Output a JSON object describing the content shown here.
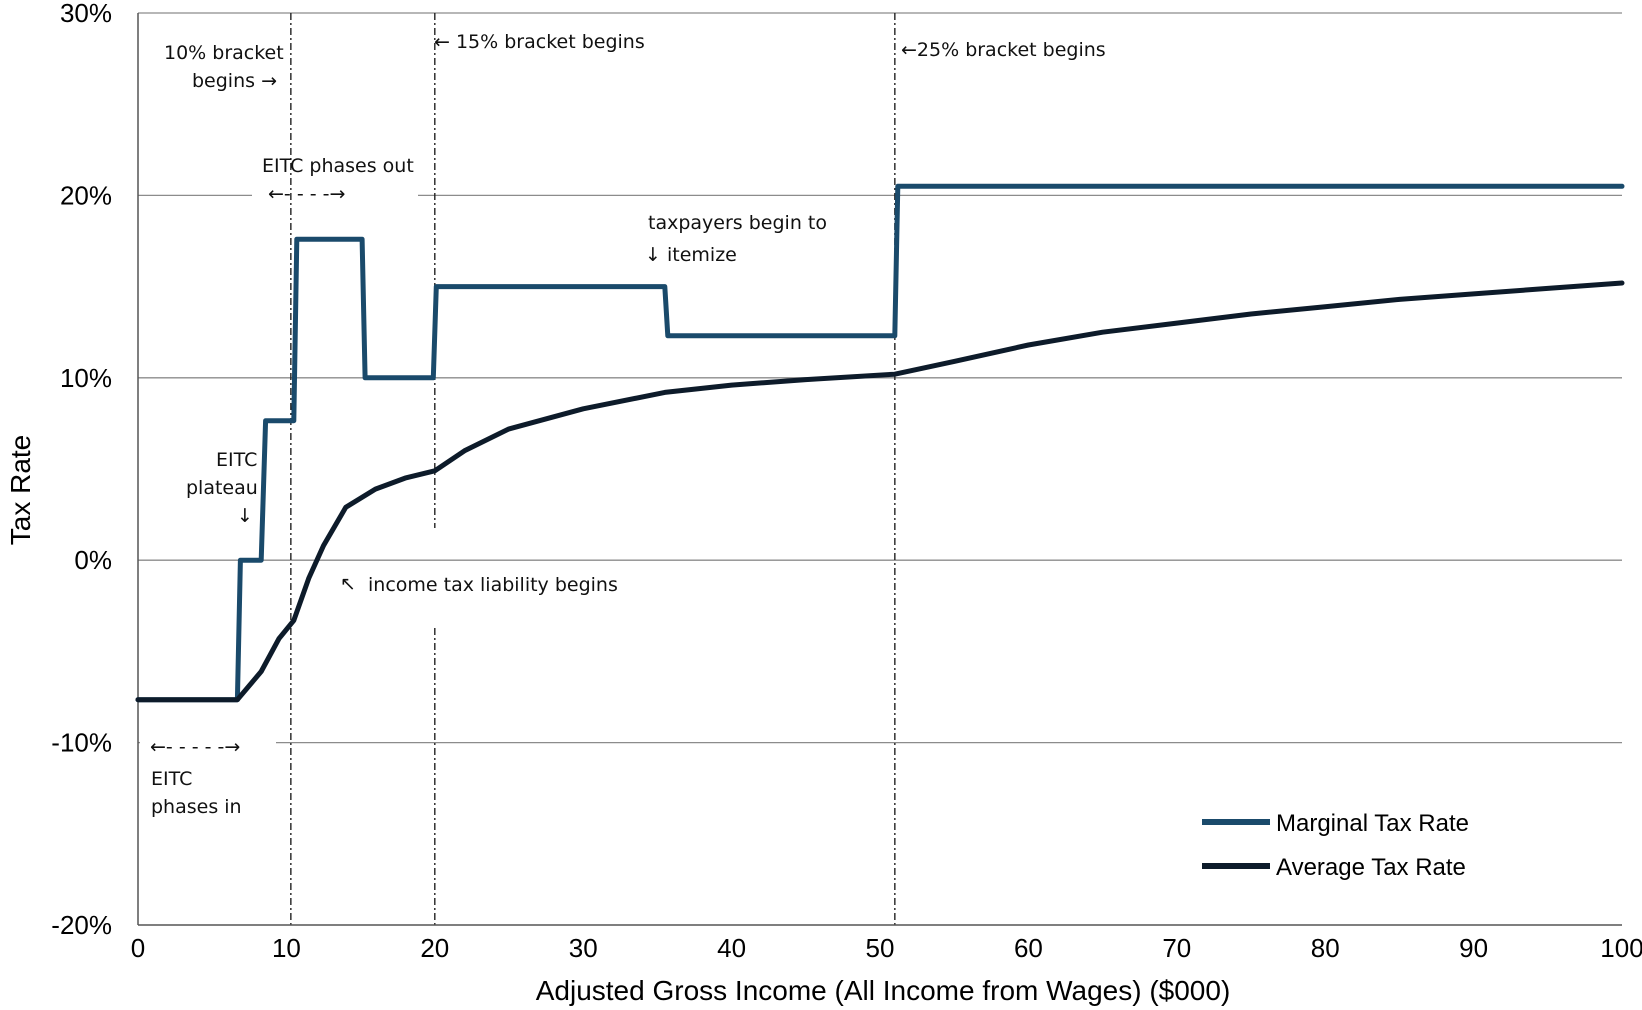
{
  "chart_data": {
    "type": "line",
    "title": "",
    "xlabel": "Adjusted Gross Income (All Income from Wages) ($000)",
    "ylabel": "Tax Rate",
    "xlim": [
      0,
      100
    ],
    "ylim": [
      -20,
      30
    ],
    "x_ticks": [
      0,
      10,
      20,
      30,
      40,
      50,
      60,
      70,
      80,
      90,
      100
    ],
    "x_tick_labels": [
      "0",
      "10",
      "20",
      "30",
      "40",
      "50",
      "60",
      "70",
      "80",
      "90",
      "100"
    ],
    "y_ticks": [
      -20,
      -10,
      0,
      10,
      20,
      30
    ],
    "y_tick_labels": [
      "-20%",
      "-10%",
      "0%",
      "10%",
      "20%",
      "30%"
    ],
    "grid": "horizontal",
    "legend_position": "bottom-right",
    "colors": {
      "marginal": "#1a4a6b",
      "average": "#0d1b2a",
      "grid": "#8c8c8c"
    },
    "series": [
      {
        "name": "Marginal Tax Rate",
        "points": [
          [
            0,
            -7.65
          ],
          [
            6.7,
            -7.65
          ],
          [
            6.9,
            0
          ],
          [
            8.3,
            0
          ],
          [
            8.6,
            7.65
          ],
          [
            10.5,
            7.65
          ],
          [
            10.7,
            17.6
          ],
          [
            15.1,
            17.6
          ],
          [
            15.3,
            10
          ],
          [
            19.9,
            10
          ],
          [
            20.1,
            15
          ],
          [
            35.5,
            15
          ],
          [
            35.7,
            12.3
          ],
          [
            51.0,
            12.3
          ],
          [
            51.2,
            20.5
          ],
          [
            100,
            20.5
          ]
        ]
      },
      {
        "name": "Average Tax Rate",
        "points": [
          [
            0,
            -7.65
          ],
          [
            6.7,
            -7.65
          ],
          [
            8.3,
            -6.1
          ],
          [
            9.5,
            -4.3
          ],
          [
            10.5,
            -3.3
          ],
          [
            11.5,
            -1.0
          ],
          [
            12.5,
            0.8
          ],
          [
            14,
            2.9
          ],
          [
            16,
            3.9
          ],
          [
            18,
            4.5
          ],
          [
            20,
            4.9
          ],
          [
            22,
            6.0
          ],
          [
            25,
            7.2
          ],
          [
            30,
            8.3
          ],
          [
            35.5,
            9.2
          ],
          [
            40,
            9.6
          ],
          [
            45,
            9.9
          ],
          [
            51,
            10.2
          ],
          [
            55,
            10.9
          ],
          [
            60,
            11.8
          ],
          [
            65,
            12.5
          ],
          [
            70,
            13.0
          ],
          [
            75,
            13.5
          ],
          [
            80,
            13.9
          ],
          [
            85,
            14.3
          ],
          [
            90,
            14.6
          ],
          [
            95,
            14.9
          ],
          [
            100,
            15.2
          ]
        ]
      }
    ],
    "vertical_markers": [
      10.3,
      20,
      51
    ],
    "annotations": [
      "10% bracket",
      "begins →",
      "← 15% bracket begins",
      "←25% bracket begins",
      "EITC phases out",
      "←- - - -→",
      "taxpayers begin to",
      "↓",
      "itemize",
      "EITC",
      "plateau",
      "↓",
      "↖",
      "income tax liability begins",
      "←- - - - -→",
      "EITC",
      "phases in"
    ]
  }
}
